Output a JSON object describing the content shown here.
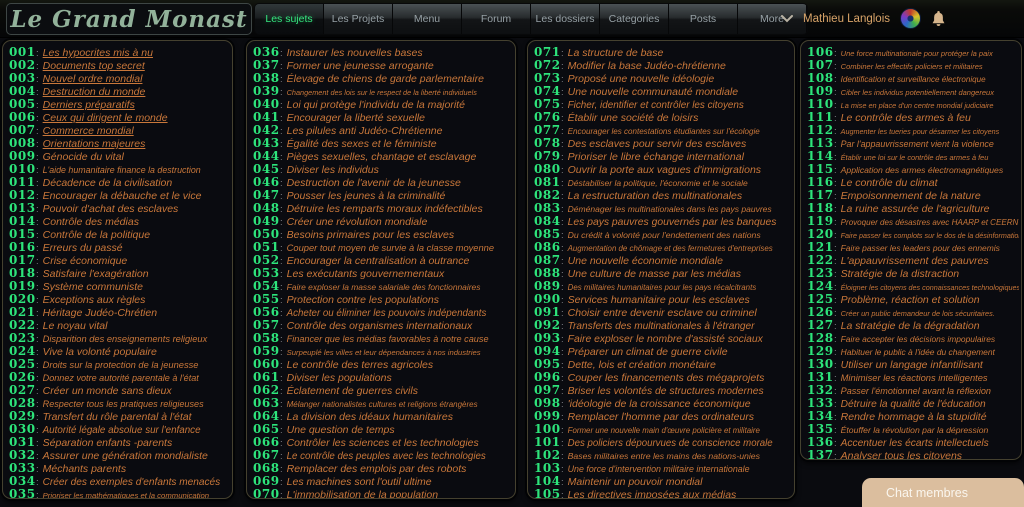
{
  "header": {
    "logo": "Le Grand Monast",
    "nav": [
      {
        "label": "Les sujets",
        "active": true
      },
      {
        "label": "Les Projets"
      },
      {
        "label": "Menu"
      },
      {
        "label": "Forum"
      },
      {
        "label": "Les dossiers"
      },
      {
        "label": "Categories"
      },
      {
        "label": "Posts"
      },
      {
        "label": "More"
      }
    ],
    "user": {
      "name": "Mathieu Langlois"
    },
    "icons": {
      "chevron": "chevron-down-icon",
      "avatar": "user-avatar",
      "bell": "notification-bell-icon"
    }
  },
  "colors": {
    "logo_green": "#92b29a",
    "active_nav_green": "#36e57f",
    "number_green": "#2de47b",
    "topic_orange": "#c9773a",
    "username_tan": "#d9a469",
    "chat_bg": "#dbbe9e"
  },
  "chat": {
    "label": "Chat membres"
  },
  "columns": [
    {
      "items": [
        {
          "n": "001",
          "t": "Les hypocrites mis à nu",
          "u": true
        },
        {
          "n": "002",
          "t": "Documents top secret",
          "u": true
        },
        {
          "n": "003",
          "t": "Nouvel ordre mondial",
          "u": true
        },
        {
          "n": "004",
          "t": "Destruction du monde",
          "u": true
        },
        {
          "n": "005",
          "t": "Derniers préparatifs",
          "u": true
        },
        {
          "n": "006",
          "t": "Ceux qui dirigent le monde",
          "u": true
        },
        {
          "n": "007",
          "t": "Commerce mondial",
          "u": true
        },
        {
          "n": "008",
          "t": "Orientations majeures",
          "u": true
        },
        {
          "n": "009",
          "t": "Génocide du vital"
        },
        {
          "n": "010",
          "t": "L'aide humanitaire finance la destruction"
        },
        {
          "n": "011",
          "t": "Décadence de la civilisation"
        },
        {
          "n": "012",
          "t": "Encourager la débauche et le vice"
        },
        {
          "n": "013",
          "t": "Pouvoir d'achat des esclaves"
        },
        {
          "n": "014",
          "t": "Contrôle des médias"
        },
        {
          "n": "015",
          "t": "Contrôle de la politique"
        },
        {
          "n": "016",
          "t": "Erreurs du passé"
        },
        {
          "n": "017",
          "t": "Crise économique"
        },
        {
          "n": "018",
          "t": "Satisfaire l'exagération"
        },
        {
          "n": "019",
          "t": "Système communiste"
        },
        {
          "n": "020",
          "t": "Exceptions aux règles"
        },
        {
          "n": "021",
          "t": "Héritage Judéo-Chrétien"
        },
        {
          "n": "022",
          "t": "Le noyau vital"
        },
        {
          "n": "023",
          "t": "Disparition des enseignements religieux"
        },
        {
          "n": "024",
          "t": "Vive la volonté populaire"
        },
        {
          "n": "025",
          "t": "Droits sur la protection de la jeunesse"
        },
        {
          "n": "026",
          "t": "Donnez votre autorité parentale à l'état"
        },
        {
          "n": "027",
          "t": "Créer un monde sans dieux"
        },
        {
          "n": "028",
          "t": "Respecter tous les pratiques religieuses"
        },
        {
          "n": "029",
          "t": "Transfert du rôle parental à l'état"
        },
        {
          "n": "030",
          "t": "Autorité légale absolue sur l'enfance"
        },
        {
          "n": "031",
          "t": "Séparation enfants -parents"
        },
        {
          "n": "032",
          "t": "Assurer une génération mondialiste"
        },
        {
          "n": "033",
          "t": "Méchants parents"
        },
        {
          "n": "034",
          "t": "Créer des exemples d'enfants menacés"
        },
        {
          "n": "035",
          "t": "Prioriser les mathématiques et la communication"
        }
      ]
    },
    {
      "items": [
        {
          "n": "036",
          "t": "Instaurer les nouvelles bases"
        },
        {
          "n": "037",
          "t": "Former une jeunesse arrogante"
        },
        {
          "n": "038",
          "t": "Élevage de chiens de garde parlementaire"
        },
        {
          "n": "039",
          "t": "Changement des lois sur le respect de la liberté individuels"
        },
        {
          "n": "040",
          "t": "Loi qui protège l'individu de la majorité"
        },
        {
          "n": "041",
          "t": "Encourager la liberté sexuelle"
        },
        {
          "n": "042",
          "t": "Les pilules anti Judéo-Chrétienne"
        },
        {
          "n": "043",
          "t": "Égalité des sexes et le féministe"
        },
        {
          "n": "044",
          "t": "Pièges sexuelles, chantage et esclavage"
        },
        {
          "n": "045",
          "t": "Diviser les individus"
        },
        {
          "n": "046",
          "t": "Destruction de l'avenir de la jeunesse"
        },
        {
          "n": "047",
          "t": "Pousser les jeunes à la criminalité"
        },
        {
          "n": "048",
          "t": "Détruire les remparts moraux indéfectibles"
        },
        {
          "n": "049",
          "t": "Créer une révolution mondiale"
        },
        {
          "n": "050",
          "t": "Besoins primaires pour les esclaves"
        },
        {
          "n": "051",
          "t": "Couper tout moyen de survie à la classe moyenne"
        },
        {
          "n": "052",
          "t": "Encourager la centralisation à outrance"
        },
        {
          "n": "053",
          "t": "Les exécutants gouvernementaux"
        },
        {
          "n": "054",
          "t": "Faire exploser la masse salariale des fonctionnaires"
        },
        {
          "n": "055",
          "t": "Protection contre les populations"
        },
        {
          "n": "056",
          "t": "Acheter ou éliminer les pouvoirs indépendants"
        },
        {
          "n": "057",
          "t": "Contrôle des organismes internationaux"
        },
        {
          "n": "058",
          "t": "Financer que les médias favorables à notre cause"
        },
        {
          "n": "059",
          "t": "Surpeuplé les villes et leur dépendances à nos industries"
        },
        {
          "n": "060",
          "t": "Le contrôle des terres agricoles"
        },
        {
          "n": "061",
          "t": "Diviser les populations"
        },
        {
          "n": "062",
          "t": "Éclatement de guerres civils"
        },
        {
          "n": "063",
          "t": "Mélanger nationalistes cultures et religions étrangères"
        },
        {
          "n": "064",
          "t": "La division des idéaux humanitaires"
        },
        {
          "n": "065",
          "t": "Une question de temps"
        },
        {
          "n": "066",
          "t": "Contrôler les sciences et les technologies"
        },
        {
          "n": "067",
          "t": "Le contrôle des peuples avec les technologies"
        },
        {
          "n": "068",
          "t": "Remplacer des emplois par des robots"
        },
        {
          "n": "069",
          "t": "Les machines sont l'outil ultime"
        },
        {
          "n": "070",
          "t": "L'immobilisation de la population"
        }
      ]
    },
    {
      "items": [
        {
          "n": "071",
          "t": "La structure de base"
        },
        {
          "n": "072",
          "t": "Modifier la base Judéo-chrétienne"
        },
        {
          "n": "073",
          "t": "Proposé une nouvelle idéologie"
        },
        {
          "n": "074",
          "t": "Une nouvelle communauté mondiale"
        },
        {
          "n": "075",
          "t": "Ficher, identifier et contrôler les citoyens"
        },
        {
          "n": "076",
          "t": "Établir une société de loisirs"
        },
        {
          "n": "077",
          "t": "Encourager les contestations étudiantes sur l'écologie"
        },
        {
          "n": "078",
          "t": "Des esclaves pour servir des esclaves"
        },
        {
          "n": "079",
          "t": "Prioriser le libre échange international"
        },
        {
          "n": "080",
          "t": "Ouvrir la porte aux vagues d'immigrations"
        },
        {
          "n": "081",
          "t": "Déstabiliser la politique, l'économie et le sociale"
        },
        {
          "n": "082",
          "t": "La restructuration des multinationales"
        },
        {
          "n": "083",
          "t": "Déménager les multinationales dans les pays pauvres"
        },
        {
          "n": "084",
          "t": "Les pays pauvres gouvernés par les banques"
        },
        {
          "n": "085",
          "t": "Du crédit à volonté pour l'endettement des nations"
        },
        {
          "n": "086",
          "t": "Augmentation de chômage et des fermetures d'entreprises"
        },
        {
          "n": "087",
          "t": "Une nouvelle économie mondiale"
        },
        {
          "n": "088",
          "t": "Une culture de masse par les médias"
        },
        {
          "n": "089",
          "t": "Des militaires humanitaires pour les pays récalcitrants"
        },
        {
          "n": "090",
          "t": "Services humanitaire pour les esclaves"
        },
        {
          "n": "091",
          "t": "Choisir entre devenir esclave ou criminel"
        },
        {
          "n": "092",
          "t": "Transferts des multinationales à l'étranger"
        },
        {
          "n": "093",
          "t": "Faire exploser le nombre d'assisté sociaux"
        },
        {
          "n": "094",
          "t": "Préparer un climat de guerre civile"
        },
        {
          "n": "095",
          "t": "Dette, lois et création monétaire"
        },
        {
          "n": "096",
          "t": "Couper les financements des mégaprojets"
        },
        {
          "n": "097",
          "t": "Briser les volontés de structures modernes"
        },
        {
          "n": "098",
          "t": "'idéologie de la croissance économique"
        },
        {
          "n": "099",
          "t": "Remplacer l'homme par des ordinateurs"
        },
        {
          "n": "100",
          "t": "Former une nouvelle main d'œuvre policière et militaire"
        },
        {
          "n": "101",
          "t": "Des policiers dépourvues de conscience morale"
        },
        {
          "n": "102",
          "t": "Bases militaires entre les mains des nations-unies"
        },
        {
          "n": "103",
          "t": "Une force d'intervention militaire internationale"
        },
        {
          "n": "104",
          "t": "Maintenir un pouvoir mondial"
        },
        {
          "n": "105",
          "t": "Les directives imposées aux médias"
        }
      ]
    },
    {
      "items": [
        {
          "n": "106",
          "t": "Une force multinationale pour protéger la paix"
        },
        {
          "n": "107",
          "t": "Combiner les effectifs policiers et militaires"
        },
        {
          "n": "108",
          "t": "Identification et surveillance électronique"
        },
        {
          "n": "109",
          "t": "Cibler les individus potentiellement dangereux"
        },
        {
          "n": "110",
          "t": "La mise en place d'un centre mondial judiciaire"
        },
        {
          "n": "111",
          "t": "Le contrôle des armes à feu"
        },
        {
          "n": "112",
          "t": "Augmenter les tueries pour désarmer les citoyens"
        },
        {
          "n": "113",
          "t": "Par l'appauvrissement vient la violence"
        },
        {
          "n": "114",
          "t": "Établir une loi sur le contrôle des armes à feu"
        },
        {
          "n": "115",
          "t": "Application des armes électromagnétiques"
        },
        {
          "n": "116",
          "t": "Le contrôle du climat"
        },
        {
          "n": "117",
          "t": "Empoisonnement de la nature"
        },
        {
          "n": "118",
          "t": "La ruine assurée de l'agriculture"
        },
        {
          "n": "119",
          "t": "Provoquer des désastres avec HAARP et CEERN"
        },
        {
          "n": "120",
          "t": "Faire passer les complots sur le dos de la désinformation"
        },
        {
          "n": "121",
          "t": "Faire passer les leaders pour des ennemis"
        },
        {
          "n": "122",
          "t": "L'appauvrissement des pauvres"
        },
        {
          "n": "123",
          "t": "Stratégie de la distraction"
        },
        {
          "n": "124",
          "t": "Éloigner les citoyens des connaissances technologiques"
        },
        {
          "n": "125",
          "t": "Problème, réaction et solution"
        },
        {
          "n": "126",
          "t": "Créer un public demandeur de lois sécuritaires."
        },
        {
          "n": "127",
          "t": "La stratégie de la dégradation"
        },
        {
          "n": "128",
          "t": "Faire accepter les décisions impopulaires"
        },
        {
          "n": "129",
          "t": "Habituer le public à l'idée du changement"
        },
        {
          "n": "130",
          "t": "Utiliser un langage infantilisant"
        },
        {
          "n": "131",
          "t": "Minimiser les réactions intelligentes"
        },
        {
          "n": "132",
          "t": "Passer l'émotionnel avant la réflexion"
        },
        {
          "n": "133",
          "t": "Détruire la qualité de l'éducation"
        },
        {
          "n": "134",
          "t": "Rendre hommage à la stupidité"
        },
        {
          "n": "135",
          "t": "Étouffer la révolution par la dépression"
        },
        {
          "n": "136",
          "t": "Accentuer les écarts intellectuels"
        },
        {
          "n": "137",
          "t": "Analyser tous les citoyens"
        }
      ]
    }
  ]
}
